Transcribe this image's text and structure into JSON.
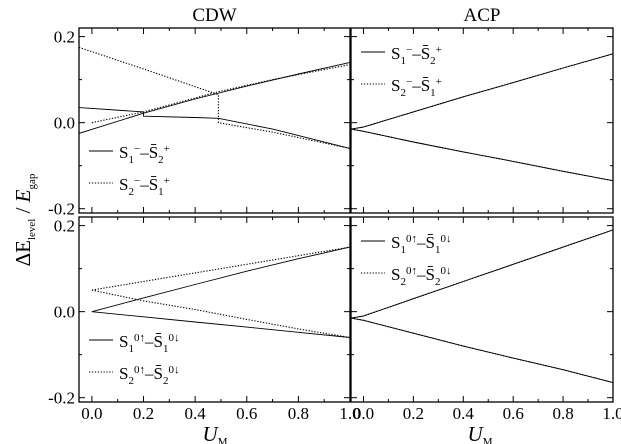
{
  "figure": {
    "ylabel": "ΔE_level / E_gap",
    "xlabel": "U_M",
    "columns": [
      "CDW",
      "ACP"
    ]
  },
  "chart_data": [
    {
      "type": "line",
      "panel": "top-left",
      "title": "CDW",
      "xlim": [
        -0.05,
        1.0
      ],
      "ylim": [
        -0.21,
        0.22
      ],
      "xticks": [
        "0.0",
        "0.2",
        "0.4",
        "0.6",
        "0.8",
        "1.0"
      ],
      "yticks": [
        "-0.2",
        "0.0",
        "0.2"
      ],
      "legend_position": "bottom-left",
      "series": [
        {
          "name": "S1−–S̄2+",
          "style": "solid",
          "x": [
            -0.05,
            0.2,
            0.2,
            0.4,
            0.49,
            0.7,
            1.0
          ],
          "y": [
            0.035,
            0.025,
            0.015,
            0.012,
            0.01,
            -0.015,
            -0.06
          ]
        },
        {
          "name": "S1−–S̄2+",
          "style": "solid",
          "x": [
            -0.05,
            0.2,
            0.4,
            0.6,
            0.8,
            1.0
          ],
          "y": [
            -0.025,
            0.022,
            0.055,
            0.085,
            0.113,
            0.14
          ]
        },
        {
          "name": "S2−–S̄1+",
          "style": "dotted",
          "x": [
            -0.05,
            0.2,
            0.49,
            0.49,
            0.7,
            1.0
          ],
          "y": [
            0.175,
            0.125,
            0.065,
            0.0,
            -0.022,
            -0.06
          ]
        },
        {
          "name": "S2−–S̄1+",
          "style": "dotted",
          "x": [
            0.0,
            0.2,
            0.49,
            0.7,
            1.0
          ],
          "y": [
            0.0,
            0.025,
            0.072,
            0.1,
            0.135
          ]
        }
      ]
    },
    {
      "type": "line",
      "panel": "top-right",
      "title": "ACP",
      "xlim": [
        -0.05,
        1.0
      ],
      "ylim": [
        -0.21,
        0.22
      ],
      "xticks": [
        "0.0",
        "0.2",
        "0.4",
        "0.6",
        "0.8",
        "1.0"
      ],
      "yticks": [
        "-0.2",
        "0.0",
        "0.2"
      ],
      "legend_position": "top-left",
      "series": [
        {
          "name": "S1−–S̄2+",
          "style": "solid",
          "x": [
            -0.05,
            0.0,
            0.2,
            0.4,
            0.6,
            0.8,
            1.0
          ],
          "y": [
            -0.015,
            -0.01,
            0.025,
            0.06,
            0.093,
            0.127,
            0.16
          ]
        },
        {
          "name": "S1−–S̄2+",
          "style": "solid",
          "x": [
            -0.05,
            0.0,
            0.2,
            0.4,
            0.6,
            0.8,
            1.0
          ],
          "y": [
            -0.015,
            -0.02,
            -0.045,
            -0.068,
            -0.09,
            -0.113,
            -0.135
          ]
        },
        {
          "name": "S2−–S̄1+",
          "style": "dotted",
          "x": [
            -0.05,
            0.0,
            0.2,
            0.4,
            0.6,
            0.8,
            1.0
          ],
          "y": [
            -0.015,
            -0.01,
            0.025,
            0.06,
            0.093,
            0.127,
            0.16
          ]
        },
        {
          "name": "S2−–S̄1+",
          "style": "dotted",
          "x": [
            -0.05,
            0.0,
            0.2,
            0.4,
            0.6,
            0.8,
            1.0
          ],
          "y": [
            -0.015,
            -0.02,
            -0.045,
            -0.068,
            -0.09,
            -0.113,
            -0.135
          ]
        }
      ]
    },
    {
      "type": "line",
      "panel": "bottom-left",
      "title": "",
      "xlim": [
        -0.05,
        1.0
      ],
      "ylim": [
        -0.21,
        0.22
      ],
      "xticks": [
        "0.0",
        "0.2",
        "0.4",
        "0.6",
        "0.8",
        "1.0"
      ],
      "yticks": [
        "-0.2",
        "0.0",
        "0.2"
      ],
      "legend_position": "bottom-left",
      "series": [
        {
          "name": "S1 0↑–S̄1 0↓",
          "style": "solid",
          "x": [
            0.0,
            0.2,
            0.4,
            0.6,
            0.8,
            1.0
          ],
          "y": [
            0.0,
            0.032,
            0.063,
            0.094,
            0.123,
            0.15
          ]
        },
        {
          "name": "S1 0↑–S̄1 0↓",
          "style": "solid",
          "x": [
            0.0,
            0.2,
            0.4,
            0.6,
            0.8,
            1.0
          ],
          "y": [
            0.0,
            -0.012,
            -0.024,
            -0.036,
            -0.048,
            -0.06
          ]
        },
        {
          "name": "S2 0↑–S̄2 0↓",
          "style": "dotted",
          "x": [
            0.0,
            0.2,
            0.4,
            0.6,
            0.8,
            1.0
          ],
          "y": [
            0.05,
            0.07,
            0.09,
            0.11,
            0.13,
            0.15
          ]
        },
        {
          "name": "S2 0↑–S̄2 0↓",
          "style": "dotted",
          "x": [
            0.0,
            0.2,
            0.4,
            0.6,
            0.8,
            1.0
          ],
          "y": [
            0.05,
            0.025,
            0.005,
            -0.018,
            -0.04,
            -0.06
          ]
        }
      ]
    },
    {
      "type": "line",
      "panel": "bottom-right",
      "title": "",
      "xlim": [
        -0.05,
        1.0
      ],
      "ylim": [
        -0.21,
        0.22
      ],
      "xticks": [
        "0.0",
        "0.2",
        "0.4",
        "0.6",
        "0.8",
        "1.0"
      ],
      "yticks": [
        "-0.2",
        "0.0",
        "0.2"
      ],
      "legend_position": "top-left",
      "series": [
        {
          "name": "S1 0↑–S̄1 0↓",
          "style": "solid",
          "x": [
            -0.05,
            0.0,
            0.2,
            0.4,
            0.6,
            0.8,
            1.0
          ],
          "y": [
            -0.015,
            -0.01,
            0.03,
            0.07,
            0.11,
            0.15,
            0.19
          ]
        },
        {
          "name": "S1 0↑–S̄1 0↓",
          "style": "solid",
          "x": [
            -0.05,
            0.0,
            0.2,
            0.4,
            0.6,
            0.8,
            1.0
          ],
          "y": [
            -0.015,
            -0.02,
            -0.05,
            -0.08,
            -0.108,
            -0.135,
            -0.165
          ]
        },
        {
          "name": "S2 0↑–S̄2 0↓",
          "style": "dotted",
          "x": [
            -0.05,
            0.0,
            0.2,
            0.4,
            0.6,
            0.8,
            1.0
          ],
          "y": [
            -0.015,
            -0.01,
            0.03,
            0.07,
            0.11,
            0.15,
            0.19
          ]
        },
        {
          "name": "S2 0↑–S̄2 0↓",
          "style": "dotted",
          "x": [
            -0.05,
            0.0,
            0.2,
            0.4,
            0.6,
            0.8,
            1.0
          ],
          "y": [
            -0.015,
            -0.02,
            -0.05,
            -0.08,
            -0.108,
            -0.135,
            -0.165
          ]
        }
      ]
    }
  ]
}
